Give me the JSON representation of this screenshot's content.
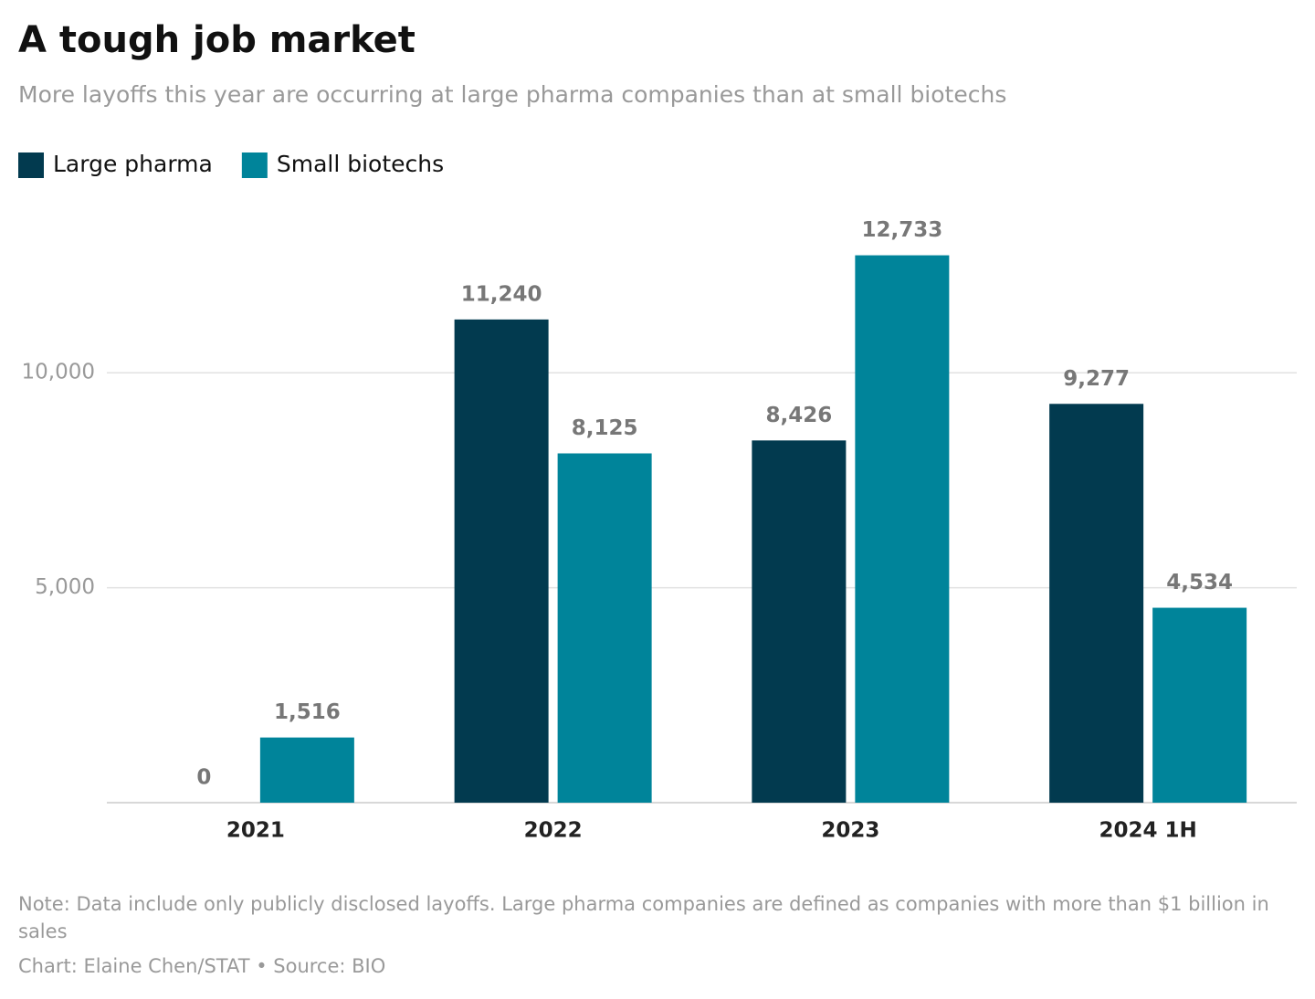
{
  "chart_data": {
    "type": "bar",
    "title": "A tough job market",
    "subtitle": "More layoffs this year are occurring at large pharma companies than at small biotechs",
    "categories": [
      "2021",
      "2022",
      "2023",
      "2024 1H"
    ],
    "series": [
      {
        "name": "Large pharma",
        "color": "#023a4f",
        "values": [
          0,
          11240,
          8426,
          9277
        ],
        "value_labels": [
          "0",
          "11,240",
          "8,426",
          "9,277"
        ]
      },
      {
        "name": "Small biotechs",
        "color": "#00849a",
        "values": [
          1516,
          8125,
          12733,
          4534
        ],
        "value_labels": [
          "1,516",
          "8,125",
          "12,733",
          "4,534"
        ]
      }
    ],
    "ylim": [
      0,
      13000
    ],
    "yticks": [
      {
        "value": 5000,
        "label": "5,000"
      },
      {
        "value": 10000,
        "label": "10,000"
      }
    ],
    "grid": true,
    "legend": "top-left",
    "note": "Note: Data include only publicly disclosed layoffs. Large pharma companies are defined as companies with more than $1 billion in sales",
    "credit": "Chart: Elaine Chen/STAT • Source: BIO"
  }
}
